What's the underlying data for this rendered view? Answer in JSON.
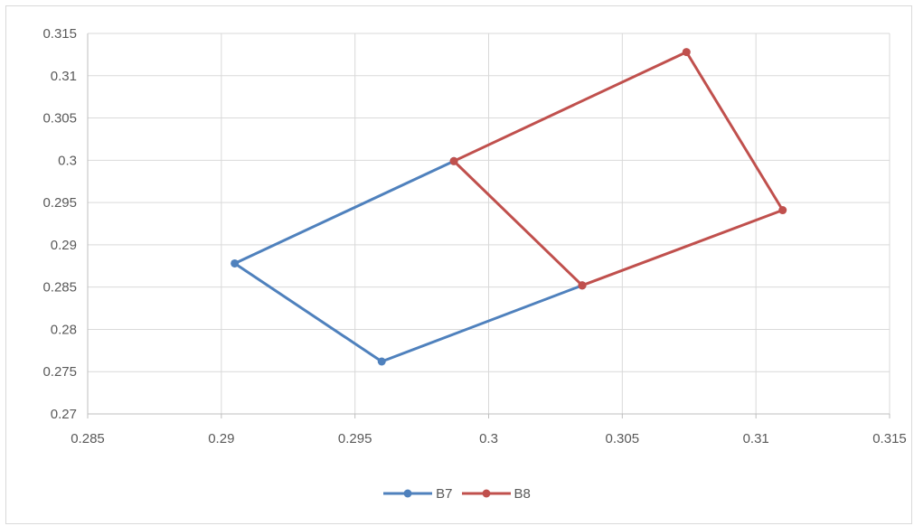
{
  "chart_data": {
    "type": "scatter",
    "title": "",
    "xlabel": "",
    "ylabel": "",
    "xlim": [
      0.285,
      0.315
    ],
    "ylim": [
      0.27,
      0.315
    ],
    "x_ticks": [
      0.285,
      0.29,
      0.295,
      0.3,
      0.305,
      0.31,
      0.315
    ],
    "x_tick_labels": [
      "0.285",
      "0.29",
      "0.295",
      "0.3",
      "0.305",
      "0.31",
      "0.315"
    ],
    "y_ticks": [
      0.27,
      0.275,
      0.28,
      0.285,
      0.29,
      0.295,
      0.3,
      0.305,
      0.31,
      0.315
    ],
    "y_tick_labels": [
      "0.27",
      "0.275",
      "0.28",
      "0.285",
      "0.29",
      "0.295",
      "0.3",
      "0.305",
      "0.31",
      "0.315"
    ],
    "grid": true,
    "legend_position": "bottom",
    "series": [
      {
        "name": "B7",
        "color": "#4f81bd",
        "points": [
          {
            "x": 0.2987,
            "y": 0.2999
          },
          {
            "x": 0.2905,
            "y": 0.2878
          },
          {
            "x": 0.296,
            "y": 0.2762
          },
          {
            "x": 0.3035,
            "y": 0.2852
          }
        ]
      },
      {
        "name": "B8",
        "color": "#c0504d",
        "points": [
          {
            "x": 0.3035,
            "y": 0.2852
          },
          {
            "x": 0.2987,
            "y": 0.2999
          },
          {
            "x": 0.3074,
            "y": 0.3128
          },
          {
            "x": 0.311,
            "y": 0.2941
          },
          {
            "x": 0.3035,
            "y": 0.2852
          }
        ]
      }
    ]
  }
}
